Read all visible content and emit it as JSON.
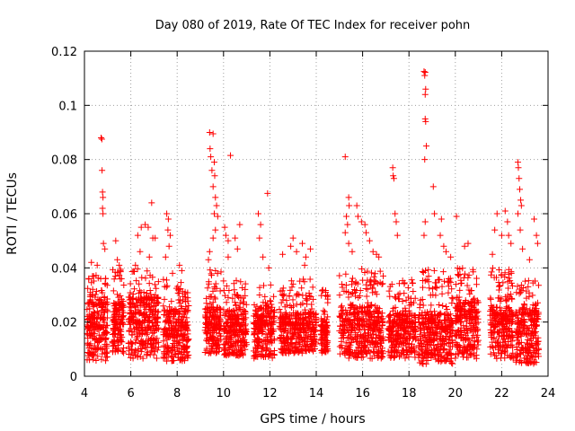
{
  "chart_data": {
    "type": "scatter",
    "title": "Day 080 of 2019, Rate Of TEC Index for receiver pohn",
    "xlabel": "GPS time / hours",
    "ylabel": "ROTI / TECUs",
    "xlim": [
      4,
      24
    ],
    "ylim": [
      0,
      0.12
    ],
    "x_ticks": [
      4,
      6,
      8,
      10,
      12,
      14,
      16,
      18,
      20,
      22,
      24
    ],
    "x_tick_labels": [
      "4",
      "6",
      "8",
      "10",
      "12",
      "14",
      "16",
      "18",
      "20",
      "22",
      "24"
    ],
    "y_ticks": [
      0,
      0.02,
      0.04,
      0.06,
      0.08,
      0.1,
      0.12
    ],
    "y_tick_labels": [
      "0",
      "0.02",
      "0.04",
      "0.06",
      "0.08",
      "0.1",
      "0.12"
    ],
    "grid": true,
    "marker": "+",
    "marker_color": "#ff0000",
    "series": [
      {
        "name": "ROTI",
        "points": [
          [
            4.72,
            0.088
          ],
          [
            4.75,
            0.0875
          ],
          [
            4.76,
            0.076
          ],
          [
            4.78,
            0.068
          ],
          [
            4.8,
            0.066
          ],
          [
            4.78,
            0.062
          ],
          [
            4.8,
            0.06
          ],
          [
            4.82,
            0.049
          ],
          [
            4.88,
            0.047
          ],
          [
            4.3,
            0.042
          ],
          [
            4.55,
            0.041
          ],
          [
            4.7,
            0.036
          ],
          [
            4.9,
            0.034
          ],
          [
            4.25,
            0.03
          ],
          [
            5.35,
            0.05
          ],
          [
            5.42,
            0.043
          ],
          [
            5.5,
            0.041
          ],
          [
            5.55,
            0.039
          ],
          [
            5.6,
            0.036
          ],
          [
            6.3,
            0.052
          ],
          [
            6.45,
            0.055
          ],
          [
            6.62,
            0.056
          ],
          [
            6.75,
            0.055
          ],
          [
            6.9,
            0.064
          ],
          [
            6.95,
            0.051
          ],
          [
            7.05,
            0.051
          ],
          [
            6.4,
            0.046
          ],
          [
            6.2,
            0.041
          ],
          [
            6.8,
            0.044
          ],
          [
            7.55,
            0.06
          ],
          [
            7.62,
            0.058
          ],
          [
            7.6,
            0.054
          ],
          [
            7.7,
            0.052
          ],
          [
            7.65,
            0.048
          ],
          [
            7.5,
            0.044
          ],
          [
            7.8,
            0.038
          ],
          [
            8.1,
            0.041
          ],
          [
            8.2,
            0.039
          ],
          [
            9.4,
            0.09
          ],
          [
            9.55,
            0.0895
          ],
          [
            9.42,
            0.084
          ],
          [
            9.45,
            0.081
          ],
          [
            9.6,
            0.079
          ],
          [
            9.5,
            0.076
          ],
          [
            9.62,
            0.074
          ],
          [
            9.55,
            0.07
          ],
          [
            9.65,
            0.066
          ],
          [
            9.7,
            0.063
          ],
          [
            9.6,
            0.06
          ],
          [
            9.75,
            0.059
          ],
          [
            9.65,
            0.054
          ],
          [
            9.55,
            0.051
          ],
          [
            9.4,
            0.046
          ],
          [
            9.35,
            0.043
          ],
          [
            10.05,
            0.055
          ],
          [
            10.1,
            0.052
          ],
          [
            10.2,
            0.05
          ],
          [
            10.3,
            0.0815
          ],
          [
            10.5,
            0.051
          ],
          [
            10.6,
            0.047
          ],
          [
            10.7,
            0.056
          ],
          [
            10.2,
            0.044
          ],
          [
            11.5,
            0.06
          ],
          [
            11.6,
            0.056
          ],
          [
            11.9,
            0.0675
          ],
          [
            11.55,
            0.051
          ],
          [
            11.7,
            0.044
          ],
          [
            11.95,
            0.04
          ],
          [
            12.55,
            0.045
          ],
          [
            12.9,
            0.048
          ],
          [
            13.0,
            0.051
          ],
          [
            13.15,
            0.046
          ],
          [
            13.4,
            0.049
          ],
          [
            13.55,
            0.044
          ],
          [
            13.75,
            0.047
          ],
          [
            13.5,
            0.041
          ],
          [
            15.25,
            0.081
          ],
          [
            15.4,
            0.066
          ],
          [
            15.42,
            0.063
          ],
          [
            15.3,
            0.059
          ],
          [
            15.35,
            0.056
          ],
          [
            15.25,
            0.053
          ],
          [
            15.4,
            0.049
          ],
          [
            15.55,
            0.046
          ],
          [
            15.75,
            0.063
          ],
          [
            15.8,
            0.059
          ],
          [
            15.95,
            0.057
          ],
          [
            16.1,
            0.056
          ],
          [
            16.15,
            0.053
          ],
          [
            16.3,
            0.05
          ],
          [
            16.45,
            0.046
          ],
          [
            16.6,
            0.045
          ],
          [
            16.7,
            0.044
          ],
          [
            17.3,
            0.077
          ],
          [
            17.32,
            0.074
          ],
          [
            17.35,
            0.073
          ],
          [
            17.4,
            0.06
          ],
          [
            17.45,
            0.057
          ],
          [
            17.5,
            0.052
          ],
          [
            18.65,
            0.1125
          ],
          [
            18.7,
            0.1122
          ],
          [
            18.68,
            0.111
          ],
          [
            18.72,
            0.106
          ],
          [
            18.7,
            0.104
          ],
          [
            18.7,
            0.095
          ],
          [
            18.72,
            0.094
          ],
          [
            18.75,
            0.085
          ],
          [
            18.68,
            0.08
          ],
          [
            18.7,
            0.057
          ],
          [
            18.65,
            0.052
          ],
          [
            19.05,
            0.07
          ],
          [
            19.1,
            0.06
          ],
          [
            19.4,
            0.058
          ],
          [
            19.35,
            0.052
          ],
          [
            19.5,
            0.048
          ],
          [
            19.6,
            0.046
          ],
          [
            19.8,
            0.044
          ],
          [
            20.05,
            0.059
          ],
          [
            20.4,
            0.048
          ],
          [
            20.55,
            0.049
          ],
          [
            21.7,
            0.054
          ],
          [
            21.8,
            0.06
          ],
          [
            21.6,
            0.045
          ],
          [
            22.0,
            0.052
          ],
          [
            22.15,
            0.061
          ],
          [
            22.25,
            0.057
          ],
          [
            22.3,
            0.052
          ],
          [
            22.4,
            0.049
          ],
          [
            22.7,
            0.079
          ],
          [
            22.72,
            0.077
          ],
          [
            22.75,
            0.073
          ],
          [
            22.78,
            0.069
          ],
          [
            22.82,
            0.065
          ],
          [
            22.85,
            0.063
          ],
          [
            22.7,
            0.06
          ],
          [
            22.8,
            0.054
          ],
          [
            22.9,
            0.047
          ],
          [
            23.2,
            0.043
          ],
          [
            23.4,
            0.058
          ],
          [
            23.5,
            0.052
          ],
          [
            23.55,
            0.049
          ]
        ],
        "clusters": [
          {
            "x_range": [
              4.1,
              5.0
            ],
            "y_range": [
              0.005,
              0.038
            ],
            "median": 0.017
          },
          {
            "x_range": [
              5.2,
              5.7
            ],
            "y_range": [
              0.008,
              0.04
            ],
            "median": 0.018
          },
          {
            "x_range": [
              5.9,
              7.2
            ],
            "y_range": [
              0.006,
              0.04
            ],
            "median": 0.018
          },
          {
            "x_range": [
              7.4,
              8.5
            ],
            "y_range": [
              0.005,
              0.036
            ],
            "median": 0.015
          },
          {
            "x_range": [
              9.2,
              9.9
            ],
            "y_range": [
              0.008,
              0.04
            ],
            "median": 0.017
          },
          {
            "x_range": [
              10.0,
              11.0
            ],
            "y_range": [
              0.007,
              0.036
            ],
            "median": 0.016
          },
          {
            "x_range": [
              11.3,
              12.2
            ],
            "y_range": [
              0.006,
              0.034
            ],
            "median": 0.016
          },
          {
            "x_range": [
              12.4,
              14.0
            ],
            "y_range": [
              0.008,
              0.036
            ],
            "median": 0.016
          },
          {
            "x_range": [
              14.2,
              14.5
            ],
            "y_range": [
              0.008,
              0.032
            ],
            "median": 0.015
          },
          {
            "x_range": [
              15.0,
              16.9
            ],
            "y_range": [
              0.006,
              0.04
            ],
            "median": 0.016
          },
          {
            "x_range": [
              17.1,
              18.3
            ],
            "y_range": [
              0.006,
              0.036
            ],
            "median": 0.015
          },
          {
            "x_range": [
              18.4,
              19.9
            ],
            "y_range": [
              0.004,
              0.04
            ],
            "median": 0.014
          },
          {
            "x_range": [
              20.0,
              21.0
            ],
            "y_range": [
              0.006,
              0.04
            ],
            "median": 0.017
          },
          {
            "x_range": [
              21.5,
              22.5
            ],
            "y_range": [
              0.006,
              0.04
            ],
            "median": 0.016
          },
          {
            "x_range": [
              22.6,
              23.6
            ],
            "y_range": [
              0.004,
              0.036
            ],
            "median": 0.015
          }
        ]
      }
    ]
  }
}
